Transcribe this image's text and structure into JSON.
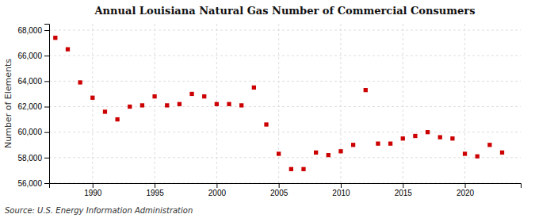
{
  "chart_data": {
    "type": "scatter",
    "title": "Annual Louisiana Natural Gas Number of Commercial Consumers",
    "ylabel": "Number of Elements",
    "source": "Source: U.S. Energy Information Administration",
    "x": [
      1987,
      1988,
      1989,
      1990,
      1991,
      1992,
      1993,
      1994,
      1995,
      1996,
      1997,
      1998,
      1999,
      2000,
      2001,
      2002,
      2003,
      2004,
      2005,
      2006,
      2007,
      2008,
      2009,
      2010,
      2011,
      2012,
      2013,
      2014,
      2015,
      2016,
      2017,
      2018,
      2019,
      2020,
      2021,
      2022,
      2023
    ],
    "values": [
      67400,
      66500,
      63900,
      62700,
      61600,
      61000,
      62000,
      62100,
      62800,
      62100,
      62200,
      63000,
      62800,
      62200,
      62200,
      62100,
      63500,
      60600,
      58300,
      57100,
      57100,
      58400,
      58200,
      58500,
      59000,
      63300,
      59100,
      59100,
      59500,
      59700,
      60000,
      59600,
      59500,
      58300,
      58100,
      59000,
      58400
    ],
    "color": "#cc0000",
    "marker": "square",
    "xlim": [
      1986.5,
      2024.5
    ],
    "xticks": [
      1990,
      1995,
      2000,
      2005,
      2010,
      2015,
      2020
    ],
    "ylim": [
      56000,
      68500
    ],
    "yticks": [
      {
        "value": 56000,
        "label": "56,000"
      },
      {
        "value": 58000,
        "label": "58,000"
      },
      {
        "value": 60000,
        "label": "60,000"
      },
      {
        "value": 62000,
        "label": "62,000"
      },
      {
        "value": 64000,
        "label": "64,000"
      },
      {
        "value": 66000,
        "label": "66,000"
      },
      {
        "value": 68000,
        "label": "68,000"
      }
    ],
    "grid": true
  }
}
